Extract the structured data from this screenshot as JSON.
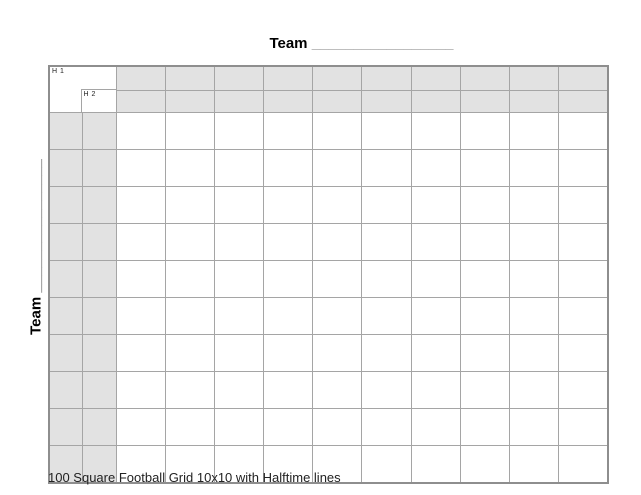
{
  "labels": {
    "top_team_word": "Team",
    "top_team_line": "_________________",
    "left_team_word": "Team",
    "left_team_line": "________________",
    "caption": "100 Square Football Grid 10x10 with Halftime lines"
  },
  "grid": {
    "h1_label": "H 1",
    "h2_label": "H 2",
    "header_rows": 2,
    "header_cols": 2,
    "main_rows": 10,
    "main_cols": 10,
    "square_fill": "#ffffff",
    "number_cell_fill": "#e2e2e2",
    "inner_line_color": "#a5a5a5",
    "outer_line_color": "#8e8e8e"
  }
}
